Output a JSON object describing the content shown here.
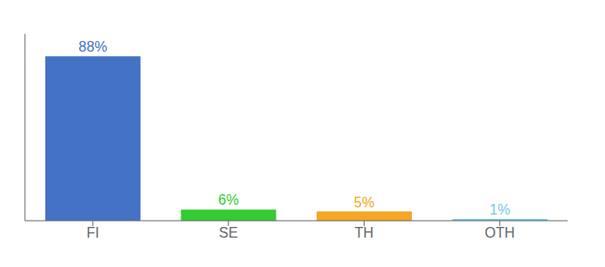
{
  "chart_data": {
    "type": "bar",
    "categories": [
      "FI",
      "SE",
      "TH",
      "OTH"
    ],
    "values": [
      88,
      6,
      5,
      1
    ],
    "value_labels": [
      "88%",
      "6%",
      "5%",
      "1%"
    ],
    "colors": [
      "#4472c4",
      "#33cc33",
      "#f5a623",
      "#74c8e8"
    ],
    "ylim": [
      0,
      100
    ],
    "data_labels": true,
    "tick_labels": "x",
    "grid": false
  }
}
